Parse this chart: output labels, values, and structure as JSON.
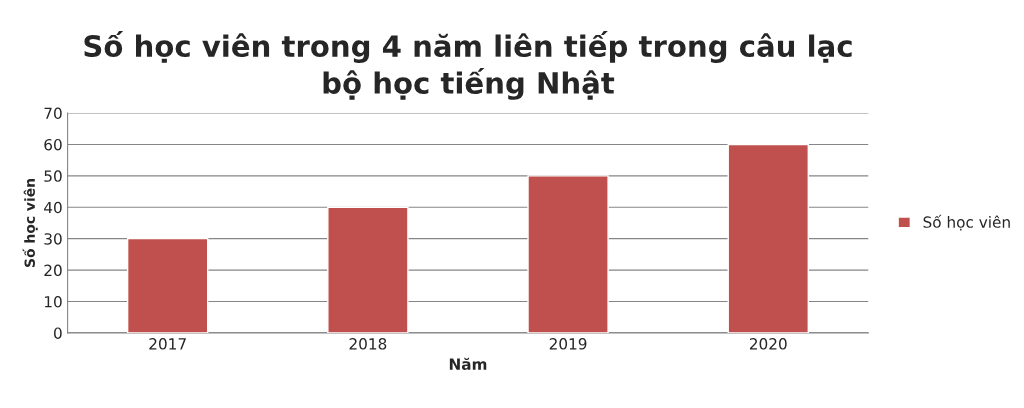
{
  "chart_data": {
    "type": "bar",
    "title": "Số học viên trong 4 năm liên tiếp trong câu lạc\nbộ học tiếng Nhật",
    "xlabel": "Năm",
    "ylabel": "Số học viên",
    "categories": [
      "2017",
      "2018",
      "2019",
      "2020"
    ],
    "series": [
      {
        "name": "Số học viên",
        "color": "#c0504d",
        "values": [
          30,
          40,
          50,
          60
        ]
      }
    ],
    "ylim": [
      0,
      70
    ],
    "yticks": [
      0,
      10,
      20,
      30,
      40,
      50,
      60,
      70
    ],
    "grid": "y",
    "legend": "right"
  }
}
